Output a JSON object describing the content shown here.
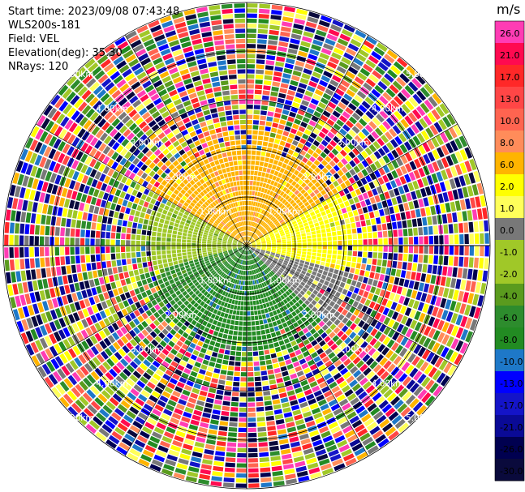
{
  "header": {
    "start_time": "Start time: 2023/09/08 07:43:48",
    "instrument": "WLS200s-181",
    "field": "Field: VEL",
    "elevation": "Elevation(deg): 35.30",
    "nrays": "NRays: 120"
  },
  "chart_data": {
    "type": "heatmap",
    "projection": "polar-ppi",
    "field": "VEL",
    "units": "m/s",
    "n_rays": 120,
    "elevation_deg": 35.3,
    "range_rings_km": [
      1.0,
      2.0,
      3.0,
      4.0,
      5.0
    ],
    "ring_labels": [
      "1.00km",
      "2.00km",
      "3.00km",
      "4.00km",
      "5.00km"
    ],
    "max_range_km": 5.0,
    "colorbar": {
      "unit_label": "m/s",
      "ticks": [
        "26.0",
        "21.0",
        "17.0",
        "13.0",
        "10.0",
        "8.0",
        "6.0",
        "2.0",
        "1.0",
        "0.0",
        "-1.0",
        "-2.0",
        "-4.0",
        "-6.0",
        "-8.0",
        "-10.0",
        "-13.0",
        "-17.0",
        "-21.0",
        "-26.0",
        "-30.0"
      ],
      "colors": [
        "#ff3cb4",
        "#ff0a50",
        "#ff2828",
        "#ff4646",
        "#ff6450",
        "#ff8c5a",
        "#ffb400",
        "#ffff00",
        "#ffff5a",
        "#787878",
        "#a0c828",
        "#a0c828",
        "#5a9b1e",
        "#2d8c2d",
        "#228b22",
        "#1e78c8",
        "#0000ff",
        "#1414c8",
        "#0a0a96",
        "#000050",
        "#0a0a3c"
      ]
    },
    "velocity_pattern": {
      "near_range_dominant": {
        "north": "6.0",
        "east": "2.0",
        "south": "-8.0",
        "west": "-2.0"
      },
      "far_range": "noise"
    }
  }
}
